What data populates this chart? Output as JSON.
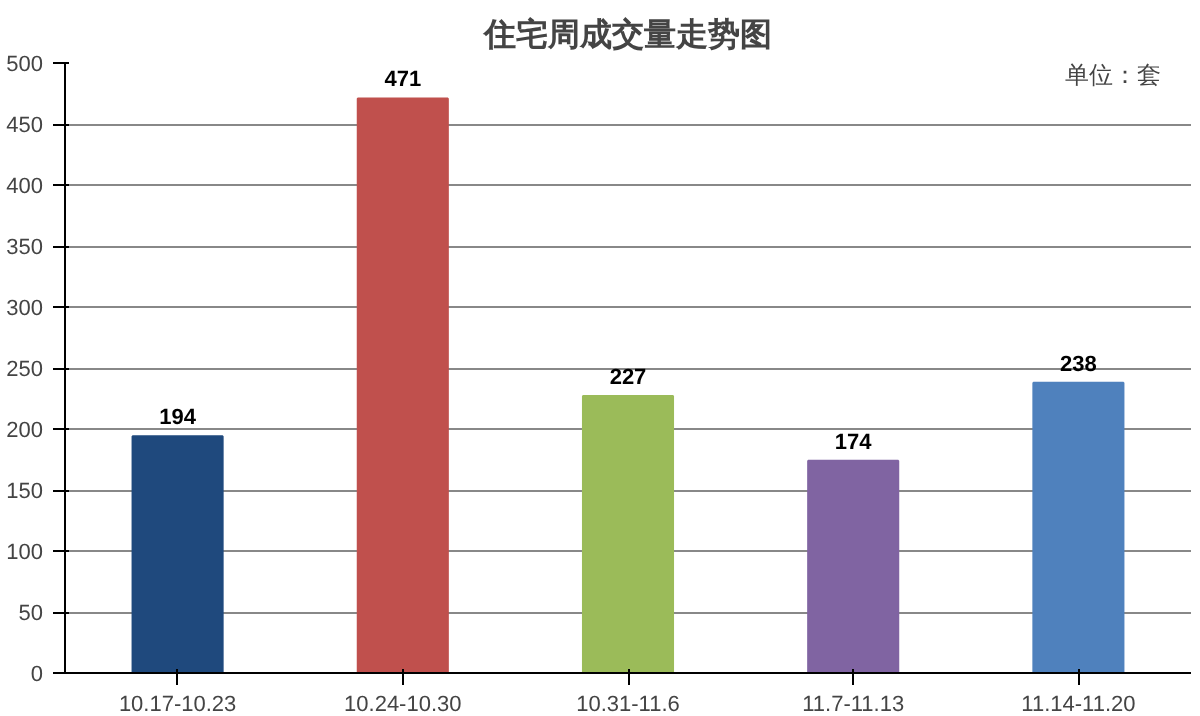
{
  "chart_data": {
    "type": "bar",
    "title": "住宅周成交量走势图",
    "annotations": [
      "单位：套"
    ],
    "categories": [
      "10.17-10.23",
      "10.24-10.30",
      "10.31-11.6",
      "11.7-11.13",
      "11.14-11.20"
    ],
    "values": [
      194,
      471,
      227,
      174,
      238
    ],
    "colors": [
      "#1f497d",
      "#c0504d",
      "#9bbb59",
      "#8064a2",
      "#4f81bd"
    ],
    "ylim": [
      0,
      500
    ],
    "yticks": [
      0,
      50,
      100,
      150,
      200,
      250,
      300,
      350,
      400,
      450,
      500
    ],
    "grid": "y",
    "data_labels": true
  }
}
